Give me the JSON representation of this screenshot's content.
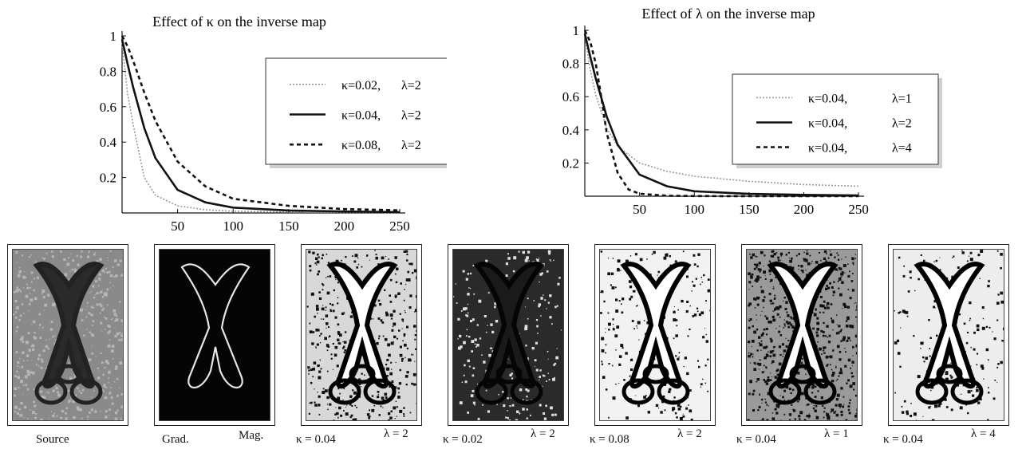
{
  "chart_data": [
    {
      "type": "line",
      "title": "Effect of κ on the inverse map",
      "xlabel": "",
      "ylabel": "",
      "xlim": [
        0,
        255
      ],
      "ylim": [
        0,
        1
      ],
      "xticks": [
        50,
        100,
        150,
        200,
        250
      ],
      "yticks": [
        0.2,
        0.4,
        0.6,
        0.8,
        1
      ],
      "legend_position": "top-right",
      "series": [
        {
          "name": "κ=0.02,",
          "param": "λ=2",
          "style": "dotted-gray",
          "x": [
            0,
            5,
            10,
            20,
            30,
            50,
            75,
            100,
            150,
            200,
            250
          ],
          "y": [
            0.96,
            0.67,
            0.5,
            0.2,
            0.1,
            0.04,
            0.018,
            0.01,
            0.005,
            0.003,
            0.002
          ]
        },
        {
          "name": "κ=0.04,",
          "param": "λ=2",
          "style": "solid-black",
          "x": [
            0,
            5,
            10,
            20,
            30,
            50,
            75,
            100,
            150,
            200,
            250
          ],
          "y": [
            0.98,
            0.84,
            0.71,
            0.48,
            0.31,
            0.13,
            0.06,
            0.03,
            0.014,
            0.008,
            0.005
          ]
        },
        {
          "name": "κ=0.08,",
          "param": "λ=2",
          "style": "dashed-black",
          "x": [
            0,
            5,
            10,
            20,
            30,
            50,
            75,
            100,
            150,
            200,
            250
          ],
          "y": [
            1.0,
            0.94,
            0.86,
            0.68,
            0.52,
            0.29,
            0.15,
            0.08,
            0.04,
            0.022,
            0.015
          ]
        }
      ]
    },
    {
      "type": "line",
      "title": "Effect of λ on the inverse map",
      "xlabel": "",
      "ylabel": "",
      "xlim": [
        0,
        255
      ],
      "ylim": [
        0,
        1
      ],
      "xticks": [
        50,
        100,
        150,
        200,
        250
      ],
      "yticks": [
        0.2,
        0.4,
        0.6,
        0.8,
        1
      ],
      "legend_position": "top-right",
      "series": [
        {
          "name": "κ=0.04,",
          "param": "λ=1",
          "style": "dotted-gray",
          "x": [
            0,
            5,
            10,
            20,
            30,
            50,
            75,
            100,
            150,
            200,
            250
          ],
          "y": [
            0.97,
            0.76,
            0.61,
            0.41,
            0.3,
            0.2,
            0.15,
            0.12,
            0.09,
            0.07,
            0.06
          ]
        },
        {
          "name": "κ=0.04,",
          "param": "λ=2",
          "style": "solid-black",
          "x": [
            0,
            5,
            10,
            20,
            30,
            50,
            75,
            100,
            150,
            200,
            250
          ],
          "y": [
            0.98,
            0.84,
            0.71,
            0.48,
            0.31,
            0.13,
            0.06,
            0.03,
            0.014,
            0.008,
            0.005
          ]
        },
        {
          "name": "κ=0.04,",
          "param": "λ=4",
          "style": "dashed-black",
          "x": [
            0,
            5,
            10,
            15,
            20,
            30,
            40,
            50,
            75,
            100,
            150,
            250
          ],
          "y": [
            1.0,
            0.93,
            0.8,
            0.6,
            0.38,
            0.14,
            0.04,
            0.015,
            0.003,
            0.001,
            0.0,
            0.0
          ]
        }
      ]
    }
  ],
  "panels": [
    {
      "id": "source",
      "caption_left": "Source",
      "caption_right": "",
      "style": "source"
    },
    {
      "id": "grad-mag",
      "caption_left": "Grad.",
      "caption_right": "Mag.",
      "style": "gradient"
    },
    {
      "id": "k004-l2",
      "caption_left": "κ = 0.04",
      "caption_right": "λ = 2",
      "style": "map-medium"
    },
    {
      "id": "k002-l2",
      "caption_left": "κ = 0.02",
      "caption_right": "λ = 2",
      "style": "map-dark"
    },
    {
      "id": "k008-l2",
      "caption_left": "κ = 0.08",
      "caption_right": "λ = 2",
      "style": "map-light"
    },
    {
      "id": "k004-l1",
      "caption_left": "κ = 0.04",
      "caption_right": "λ = 1",
      "style": "map-noisy"
    },
    {
      "id": "k004-l4",
      "caption_left": "κ = 0.04",
      "caption_right": "λ = 4",
      "style": "map-crisp"
    }
  ],
  "colors": {
    "ink": "#111111",
    "gray_series": "#9a9a9a",
    "legend_border": "#333333"
  }
}
